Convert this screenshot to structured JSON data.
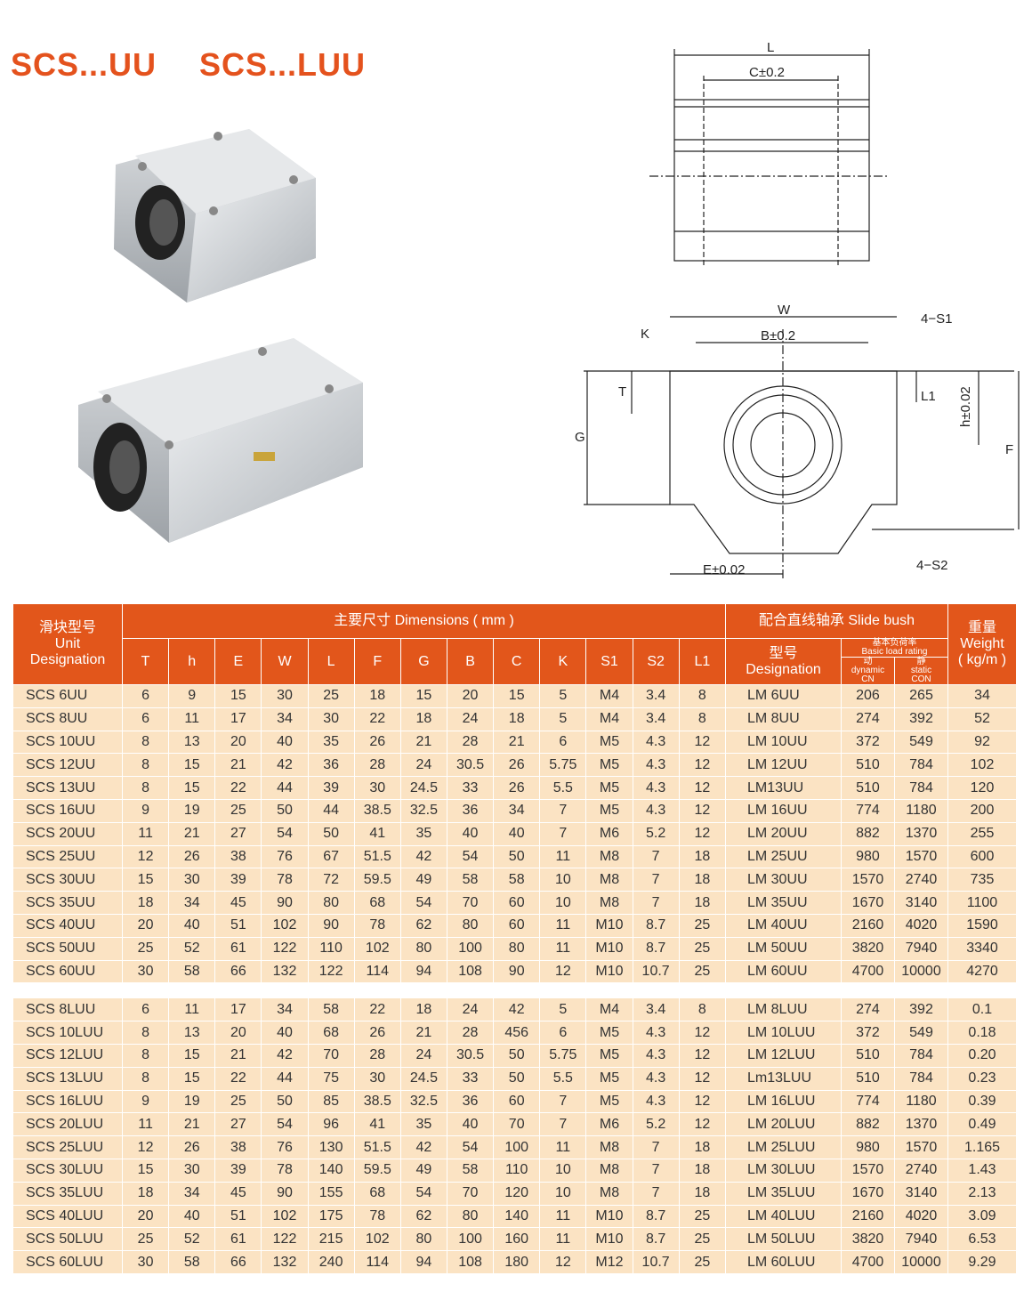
{
  "titles": {
    "uu": "SCS...UU",
    "luu": "SCS...LUU"
  },
  "drawing_labels": {
    "L": "L",
    "C": "C±0.2",
    "W": "W",
    "B": "B±0.2",
    "K": "K",
    "S1": "4−S1",
    "T": "T",
    "L1": "L1",
    "h": "h±0.02",
    "G": "G",
    "F": "F",
    "E": "E±0.02",
    "S2": "4−S2"
  },
  "table": {
    "headers": {
      "unit_cn": "滑块型号",
      "unit_en": "Unit",
      "unit_en2": "Designation",
      "dimensions": "主要尺寸  Dimensions ( mm )",
      "dim_cols": [
        "T",
        "h",
        "E",
        "W",
        "L",
        "F",
        "G",
        "B",
        "C",
        "K",
        "S1",
        "S2",
        "L1"
      ],
      "slide_bush": "配合直线轴承  Slide bush",
      "designation_cn": "型号",
      "designation_en": "Designation",
      "load_cn": "基本负荷率",
      "load_en": "Basic load rating",
      "dynamic_cn": "动",
      "dynamic_en": "dynamic",
      "dynamic_sym": "CN",
      "static_cn": "静",
      "static_en": "static",
      "static_sym": "CON",
      "weight_cn": "重量",
      "weight_en": "Weight",
      "weight_unit": "( kg/m )"
    },
    "group_uu": [
      [
        "SCS 6UU",
        "6",
        "9",
        "15",
        "30",
        "25",
        "18",
        "15",
        "20",
        "15",
        "5",
        "M4",
        "3.4",
        "8",
        "LM 6UU",
        "206",
        "265",
        "34"
      ],
      [
        "SCS 8UU",
        "6",
        "11",
        "17",
        "34",
        "30",
        "22",
        "18",
        "24",
        "18",
        "5",
        "M4",
        "3.4",
        "8",
        "LM 8UU",
        "274",
        "392",
        "52"
      ],
      [
        "SCS 10UU",
        "8",
        "13",
        "20",
        "40",
        "35",
        "26",
        "21",
        "28",
        "21",
        "6",
        "M5",
        "4.3",
        "12",
        "LM 10UU",
        "372",
        "549",
        "92"
      ],
      [
        "SCS 12UU",
        "8",
        "15",
        "21",
        "42",
        "36",
        "28",
        "24",
        "30.5",
        "26",
        "5.75",
        "M5",
        "4.3",
        "12",
        "LM 12UU",
        "510",
        "784",
        "102"
      ],
      [
        "SCS 13UU",
        "8",
        "15",
        "22",
        "44",
        "39",
        "30",
        "24.5",
        "33",
        "26",
        "5.5",
        "M5",
        "4.3",
        "12",
        "LM13UU",
        "510",
        "784",
        "120"
      ],
      [
        "SCS 16UU",
        "9",
        "19",
        "25",
        "50",
        "44",
        "38.5",
        "32.5",
        "36",
        "34",
        "7",
        "M5",
        "4.3",
        "12",
        "LM 16UU",
        "774",
        "1180",
        "200"
      ],
      [
        "SCS 20UU",
        "11",
        "21",
        "27",
        "54",
        "50",
        "41",
        "35",
        "40",
        "40",
        "7",
        "M6",
        "5.2",
        "12",
        "LM 20UU",
        "882",
        "1370",
        "255"
      ],
      [
        "SCS 25UU",
        "12",
        "26",
        "38",
        "76",
        "67",
        "51.5",
        "42",
        "54",
        "50",
        "11",
        "M8",
        "7",
        "18",
        "LM 25UU",
        "980",
        "1570",
        "600"
      ],
      [
        "SCS 30UU",
        "15",
        "30",
        "39",
        "78",
        "72",
        "59.5",
        "49",
        "58",
        "58",
        "10",
        "M8",
        "7",
        "18",
        "LM 30UU",
        "1570",
        "2740",
        "735"
      ],
      [
        "SCS 35UU",
        "18",
        "34",
        "45",
        "90",
        "80",
        "68",
        "54",
        "70",
        "60",
        "10",
        "M8",
        "7",
        "18",
        "LM 35UU",
        "1670",
        "3140",
        "1100"
      ],
      [
        "SCS 40UU",
        "20",
        "40",
        "51",
        "102",
        "90",
        "78",
        "62",
        "80",
        "60",
        "11",
        "M10",
        "8.7",
        "25",
        "LM 40UU",
        "2160",
        "4020",
        "1590"
      ],
      [
        "SCS 50UU",
        "25",
        "52",
        "61",
        "122",
        "110",
        "102",
        "80",
        "100",
        "80",
        "11",
        "M10",
        "8.7",
        "25",
        "LM 50UU",
        "3820",
        "7940",
        "3340"
      ],
      [
        "SCS 60UU",
        "30",
        "58",
        "66",
        "132",
        "122",
        "114",
        "94",
        "108",
        "90",
        "12",
        "M10",
        "10.7",
        "25",
        "LM 60UU",
        "4700",
        "10000",
        "4270"
      ]
    ],
    "group_luu": [
      [
        "SCS 8LUU",
        "6",
        "11",
        "17",
        "34",
        "58",
        "22",
        "18",
        "24",
        "42",
        "5",
        "M4",
        "3.4",
        "8",
        "LM 8LUU",
        "274",
        "392",
        "0.1"
      ],
      [
        "SCS 10LUU",
        "8",
        "13",
        "20",
        "40",
        "68",
        "26",
        "21",
        "28",
        "456",
        "6",
        "M5",
        "4.3",
        "12",
        "LM 10LUU",
        "372",
        "549",
        "0.18"
      ],
      [
        "SCS 12LUU",
        "8",
        "15",
        "21",
        "42",
        "70",
        "28",
        "24",
        "30.5",
        "50",
        "5.75",
        "M5",
        "4.3",
        "12",
        "LM 12LUU",
        "510",
        "784",
        "0.20"
      ],
      [
        "SCS 13LUU",
        "8",
        "15",
        "22",
        "44",
        "75",
        "30",
        "24.5",
        "33",
        "50",
        "5.5",
        "M5",
        "4.3",
        "12",
        "Lm13LUU",
        "510",
        "784",
        "0.23"
      ],
      [
        "SCS 16LUU",
        "9",
        "19",
        "25",
        "50",
        "85",
        "38.5",
        "32.5",
        "36",
        "60",
        "7",
        "M5",
        "4.3",
        "12",
        "LM 16LUU",
        "774",
        "1180",
        "0.39"
      ],
      [
        "SCS 20LUU",
        "11",
        "21",
        "27",
        "54",
        "96",
        "41",
        "35",
        "40",
        "70",
        "7",
        "M6",
        "5.2",
        "12",
        "LM 20LUU",
        "882",
        "1370",
        "0.49"
      ],
      [
        "SCS 25LUU",
        "12",
        "26",
        "38",
        "76",
        "130",
        "51.5",
        "42",
        "54",
        "100",
        "11",
        "M8",
        "7",
        "18",
        "LM 25LUU",
        "980",
        "1570",
        "1.165"
      ],
      [
        "SCS 30LUU",
        "15",
        "30",
        "39",
        "78",
        "140",
        "59.5",
        "49",
        "58",
        "110",
        "10",
        "M8",
        "7",
        "18",
        "LM 30LUU",
        "1570",
        "2740",
        "1.43"
      ],
      [
        "SCS 35LUU",
        "18",
        "34",
        "45",
        "90",
        "155",
        "68",
        "54",
        "70",
        "120",
        "10",
        "M8",
        "7",
        "18",
        "LM 35LUU",
        "1670",
        "3140",
        "2.13"
      ],
      [
        "SCS 40LUU",
        "20",
        "40",
        "51",
        "102",
        "175",
        "78",
        "62",
        "80",
        "140",
        "11",
        "M10",
        "8.7",
        "25",
        "LM 40LUU",
        "2160",
        "4020",
        "3.09"
      ],
      [
        "SCS 50LUU",
        "25",
        "52",
        "61",
        "122",
        "215",
        "102",
        "80",
        "100",
        "160",
        "11",
        "M10",
        "8.7",
        "25",
        "LM 50LUU",
        "3820",
        "7940",
        "6.53"
      ],
      [
        "SCS 60LUU",
        "30",
        "58",
        "66",
        "132",
        "240",
        "114",
        "94",
        "108",
        "180",
        "12",
        "M12",
        "10.7",
        "25",
        "LM 60LUU",
        "4700",
        "10000",
        "9.29"
      ]
    ]
  },
  "colors": {
    "accent": "#e4521d",
    "header_bg": "#e2561b",
    "cell_bg": "#fbe3c3"
  }
}
